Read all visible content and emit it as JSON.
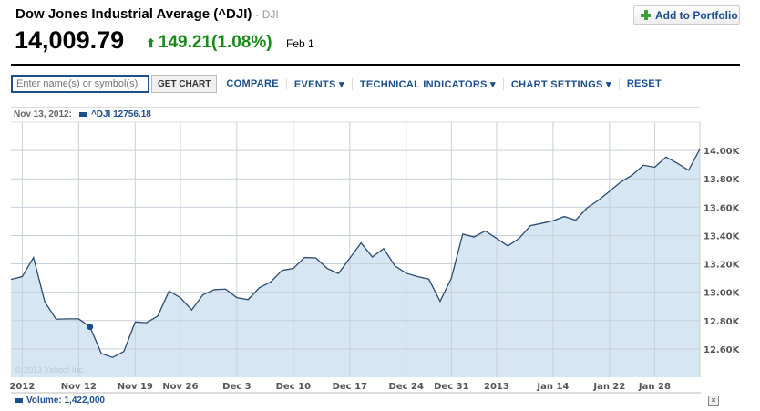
{
  "header": {
    "title": "Dow Jones Industrial Average (^DJI)",
    "symbol": "- DJI",
    "price": "14,009.79",
    "change": "149.21(1.08%)",
    "date": "Feb 1",
    "add_button": "Add to Portfolio",
    "change_color": "#1a8a1a"
  },
  "toolbar": {
    "search_placeholder": "Enter name(s) or symbol(s)",
    "get_chart": "GET CHART",
    "compare": "COMPARE",
    "events": "EVENTS ▾",
    "technical": "TECHNICAL INDICATORS ▾",
    "settings": "CHART SETTINGS ▾",
    "reset": "RESET"
  },
  "legend": {
    "date": "Nov 13, 2012:",
    "series": "^DJI 12756.18",
    "volume": "Volume: 1,422,000"
  },
  "close_label": "×",
  "chart_data": {
    "type": "area",
    "watermark": "© 2013 Yahoo! Inc.",
    "ylim": [
      12400,
      14200
    ],
    "y_ticks": [
      {
        "v": 12600,
        "label": "12.60K"
      },
      {
        "v": 12800,
        "label": "12.80K"
      },
      {
        "v": 13000,
        "label": "13.00K"
      },
      {
        "v": 13200,
        "label": "13.20K"
      },
      {
        "v": 13400,
        "label": "13.40K"
      },
      {
        "v": 13600,
        "label": "13.60K"
      },
      {
        "v": 13800,
        "label": "13.80K"
      },
      {
        "v": 14000,
        "label": "14.00K"
      }
    ],
    "x_ticks": [
      {
        "date": "2012-11-05",
        "label": "2012"
      },
      {
        "date": "2012-11-12",
        "label": "Nov 12"
      },
      {
        "date": "2012-11-19",
        "label": "Nov 19"
      },
      {
        "date": "2012-11-26",
        "label": "Nov 26"
      },
      {
        "date": "2012-12-03",
        "label": "Dec 3"
      },
      {
        "date": "2012-12-10",
        "label": "Dec 10"
      },
      {
        "date": "2012-12-17",
        "label": "Dec 17"
      },
      {
        "date": "2012-12-24",
        "label": "Dec 24"
      },
      {
        "date": "2012-12-31",
        "label": "Dec 31"
      },
      {
        "date": "2013-01-07",
        "label": "2013"
      },
      {
        "date": "2013-01-14",
        "label": "Jan 14"
      },
      {
        "date": "2013-01-22",
        "label": "Jan 22"
      },
      {
        "date": "2013-01-28",
        "label": "Jan 28"
      }
    ],
    "highlight": {
      "date": "2012-11-13",
      "value": 12756.18
    },
    "x": [
      "2012-11-02",
      "2012-11-05",
      "2012-11-06",
      "2012-11-07",
      "2012-11-08",
      "2012-11-09",
      "2012-11-12",
      "2012-11-13",
      "2012-11-14",
      "2012-11-15",
      "2012-11-16",
      "2012-11-19",
      "2012-11-20",
      "2012-11-21",
      "2012-11-23",
      "2012-11-26",
      "2012-11-27",
      "2012-11-28",
      "2012-11-29",
      "2012-11-30",
      "2012-12-03",
      "2012-12-04",
      "2012-12-05",
      "2012-12-06",
      "2012-12-07",
      "2012-12-10",
      "2012-12-11",
      "2012-12-12",
      "2012-12-13",
      "2012-12-14",
      "2012-12-17",
      "2012-12-18",
      "2012-12-19",
      "2012-12-20",
      "2012-12-21",
      "2012-12-24",
      "2012-12-26",
      "2012-12-27",
      "2012-12-28",
      "2012-12-31",
      "2013-01-02",
      "2013-01-03",
      "2013-01-04",
      "2013-01-07",
      "2013-01-08",
      "2013-01-09",
      "2013-01-10",
      "2013-01-11",
      "2013-01-14",
      "2013-01-15",
      "2013-01-16",
      "2013-01-17",
      "2013-01-18",
      "2013-01-22",
      "2013-01-23",
      "2013-01-24",
      "2013-01-25",
      "2013-01-28",
      "2013-01-29",
      "2013-01-30",
      "2013-01-31",
      "2013-02-01"
    ],
    "values": [
      13090,
      13110,
      13245,
      12932,
      12810,
      12812,
      12812,
      12756,
      12568,
      12540,
      12582,
      12790,
      12785,
      12832,
      13008,
      12962,
      12875,
      12982,
      13018,
      13022,
      12962,
      12948,
      13032,
      13072,
      13154,
      13168,
      13245,
      13242,
      13168,
      13132,
      13240,
      13348,
      13249,
      13308,
      13186,
      13134,
      13110,
      13093,
      12936,
      13100,
      13410,
      13390,
      13432,
      13380,
      13326,
      13380,
      13470,
      13486,
      13504,
      13534,
      13508,
      13594,
      13648,
      13712,
      13778,
      13826,
      13896,
      13882,
      13954,
      13910,
      13860,
      14009.79
    ],
    "line_color": "#2b4a6e",
    "fill_color": "#d6e6f3"
  }
}
